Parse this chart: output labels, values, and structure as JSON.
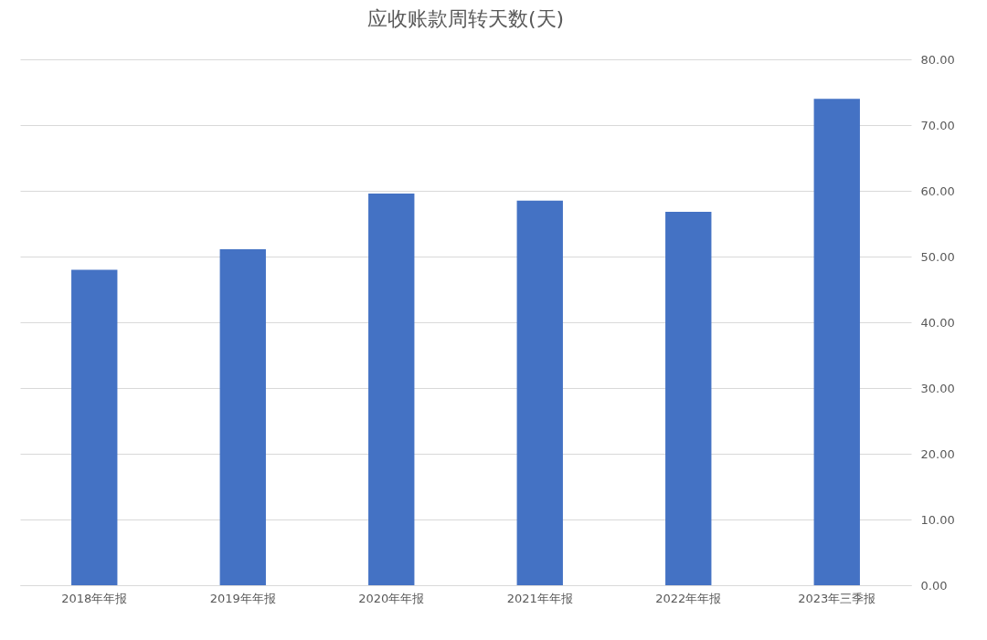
{
  "chart_data": {
    "type": "bar",
    "title": "应收账款周转天数(天)",
    "categories": [
      "2018年年报",
      "2019年年报",
      "2020年年报",
      "2021年年报",
      "2022年年报",
      "2023年三季报"
    ],
    "values": [
      48.0,
      51.1,
      59.6,
      58.5,
      56.8,
      74.0
    ],
    "color": "#4472c4",
    "ylim": [
      0,
      80
    ],
    "yticks": [
      {
        "value": 0,
        "label": "0.00"
      },
      {
        "value": 10,
        "label": "10.00"
      },
      {
        "value": 20,
        "label": "20.00"
      },
      {
        "value": 30,
        "label": "30.00"
      },
      {
        "value": 40,
        "label": "40.00"
      },
      {
        "value": 50,
        "label": "50.00"
      },
      {
        "value": 60,
        "label": "60.00"
      },
      {
        "value": 70,
        "label": "70.00"
      },
      {
        "value": 80,
        "label": "80.00"
      }
    ],
    "grid": "y"
  }
}
